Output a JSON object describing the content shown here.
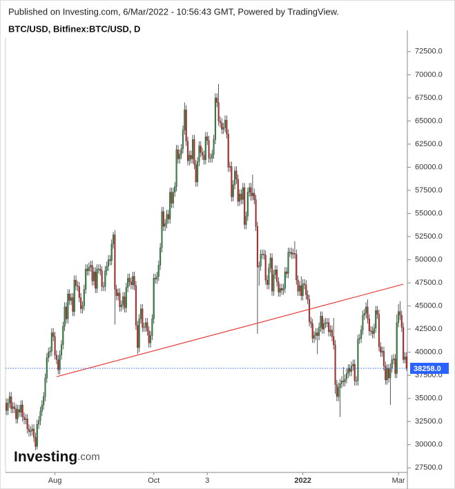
{
  "header": "Published on Investing.com, 6/Mar/2022 - 10:56:43 GMT, Powered by TradingView.",
  "logo": {
    "brand": "Investing",
    "suffix": ".com"
  },
  "chart_data": {
    "type": "candlestick",
    "title": "BTC/USD, Bitfinex:BTC/USD, D",
    "categories": [
      null,
      null,
      null,
      null,
      null,
      null,
      null,
      null,
      null,
      null,
      null,
      null,
      null,
      null,
      null,
      null,
      null,
      null,
      null,
      null,
      null,
      null,
      null,
      null,
      null,
      null,
      null,
      null,
      null,
      null,
      "Aug",
      null,
      null,
      null,
      null,
      null,
      null,
      null,
      null,
      null,
      null,
      null,
      null,
      null,
      null,
      null,
      null,
      null,
      null,
      null,
      null,
      null,
      null,
      null,
      null,
      null,
      null,
      null,
      null,
      null,
      null,
      null,
      null,
      null,
      null,
      null,
      null,
      null,
      null,
      null,
      null,
      null,
      null,
      null,
      null,
      null,
      null,
      null,
      null,
      null,
      null,
      null,
      null,
      null,
      null,
      null,
      null,
      null,
      null,
      null,
      null,
      "Oct",
      null,
      null,
      null,
      null,
      null,
      null,
      null,
      null,
      null,
      null,
      null,
      null,
      null,
      null,
      null,
      null,
      null,
      null,
      null,
      null,
      null,
      null,
      null,
      null,
      null,
      null,
      null,
      null,
      null,
      null,
      null,
      null,
      "3",
      null,
      null,
      null,
      null,
      null,
      null,
      null,
      null,
      null,
      null,
      null,
      null,
      null,
      null,
      null,
      null,
      null,
      null,
      null,
      null,
      null,
      null,
      null,
      null,
      null,
      null,
      null,
      null,
      null,
      null,
      null,
      null,
      null,
      null,
      null,
      null,
      null,
      null,
      null,
      null,
      null,
      null,
      null,
      null,
      null,
      null,
      null,
      null,
      null,
      null,
      null,
      null,
      null,
      null,
      null,
      null,
      null,
      null,
      "2022",
      null,
      null,
      null,
      null,
      null,
      null,
      null,
      null,
      null,
      null,
      null,
      null,
      null,
      null,
      null,
      null,
      null,
      null,
      null,
      null,
      null,
      null,
      null,
      null,
      null,
      null,
      null,
      null,
      null,
      null,
      null,
      null,
      null,
      null,
      null,
      null,
      null,
      null,
      null,
      null,
      null,
      null,
      null,
      null,
      null,
      null,
      null,
      null,
      null,
      null,
      null,
      null,
      null,
      null,
      null,
      null,
      null,
      null,
      "Mar",
      null,
      null,
      null,
      null,
      null
    ],
    "open": [
      34500,
      33700,
      34500,
      35200,
      33900,
      34100,
      33900,
      32800,
      33800,
      33500,
      34300,
      33000,
      32700,
      32800,
      31700,
      31400,
      31500,
      31700,
      30800,
      29800,
      32200,
      32600,
      33600,
      34300,
      35200,
      37200,
      39400,
      40000,
      40100,
      42100,
      41700,
      39700,
      39200,
      38100,
      39700,
      40800,
      42800,
      44900,
      43600,
      46300,
      45600,
      45900,
      44400,
      47800,
      47200,
      47100,
      45900,
      44700,
      45000,
      46800,
      49000,
      48800,
      49200,
      49400,
      47700,
      48700,
      46900,
      49000,
      49000,
      48800,
      47100,
      47100,
      48800,
      49300,
      50000,
      49900,
      51700,
      52700,
      46800,
      46100,
      46400,
      44900,
      45100,
      46000,
      44800,
      47000,
      48000,
      47600,
      47300,
      48200,
      47200,
      42900,
      40500,
      43600,
      44700,
      42700,
      42700,
      43200,
      42300,
      41000,
      41800,
      43600,
      48000,
      47900,
      48200,
      49400,
      51300,
      55200,
      53600,
      53900,
      54900,
      54400,
      57300,
      56100,
      57300,
      57900,
      61900,
      60900,
      61400,
      62000,
      64000,
      66200,
      62800,
      60700,
      61300,
      60900,
      63000,
      60300,
      58400,
      60600,
      62300,
      61600,
      61300,
      60800,
      63300,
      62900,
      61000,
      61000,
      61400,
      63000,
      67500,
      67000,
      65000,
      64800,
      64100,
      64300,
      65100,
      63600,
      60000,
      60100,
      56800,
      58100,
      59600,
      58700,
      56300,
      57100,
      56500,
      57800,
      53800,
      54700,
      57300,
      57800,
      56900,
      57200,
      56500,
      53600,
      49200,
      49300,
      50600,
      50600,
      50500,
      47800,
      47300,
      49100,
      50200,
      46600,
      48400,
      48900,
      47600,
      46500,
      46900,
      46700,
      46900,
      48700,
      48500,
      50800,
      50800,
      50600,
      50700,
      50600,
      47800,
      46600,
      47200,
      46100,
      47400,
      47300,
      46200,
      45700,
      43300,
      43100,
      41500,
      41800,
      42100,
      41800,
      42700,
      43900,
      42500,
      43100,
      43200,
      43200,
      42200,
      42400,
      41700,
      40800,
      36500,
      35200,
      36200,
      36600,
      36900,
      36800,
      37100,
      37700,
      38200,
      37900,
      38500,
      38700,
      36900,
      36900,
      41400,
      41500,
      42400,
      44000,
      44200,
      44900,
      43600,
      42300,
      42300,
      42000,
      42600,
      44500,
      44100,
      40600,
      40000,
      40100,
      38500,
      37000,
      38200,
      37200,
      38300,
      39200,
      39300,
      37700,
      43200,
      44400,
      44000,
      42700,
      39200,
      39500
    ],
    "high": [
      35000,
      35000,
      35700,
      35700,
      34600,
      34600,
      34400,
      34300,
      34300,
      34800,
      34800,
      33500,
      33300,
      33300,
      32200,
      32000,
      32200,
      32200,
      31300,
      32700,
      33100,
      34100,
      34800,
      35700,
      37700,
      39900,
      40500,
      40600,
      42600,
      42600,
      42200,
      40200,
      39700,
      40200,
      41300,
      43300,
      45400,
      45400,
      46800,
      46800,
      46400,
      46400,
      48300,
      48300,
      47700,
      47600,
      46400,
      45500,
      47300,
      49500,
      49500,
      49700,
      49900,
      49900,
      49200,
      49200,
      49500,
      49500,
      49500,
      49300,
      47600,
      49300,
      49800,
      50500,
      50500,
      52200,
      53000,
      53200,
      47300,
      46900,
      46900,
      45600,
      46500,
      46500,
      47500,
      48500,
      48500,
      48100,
      48700,
      48700,
      47700,
      43400,
      44100,
      45200,
      45200,
      43200,
      43700,
      43700,
      42800,
      42300,
      44100,
      48500,
      48500,
      48700,
      49900,
      51800,
      55700,
      55700,
      54400,
      55400,
      55400,
      57800,
      57800,
      57800,
      58400,
      62400,
      62400,
      61900,
      62500,
      64500,
      67000,
      66700,
      63300,
      61800,
      61800,
      63500,
      63500,
      60800,
      61100,
      62800,
      62800,
      62100,
      61800,
      63800,
      63800,
      63400,
      61500,
      61900,
      63500,
      68000,
      68000,
      69000,
      65500,
      65300,
      64800,
      65600,
      65600,
      64100,
      60600,
      60600,
      58600,
      60100,
      60100,
      59200,
      57600,
      57600,
      58300,
      58300,
      55200,
      57800,
      58300,
      58300,
      59200,
      57700,
      57000,
      54100,
      49800,
      51100,
      51100,
      51100,
      51000,
      48300,
      49600,
      50700,
      50700,
      48900,
      49400,
      49400,
      48100,
      47400,
      47400,
      47400,
      49200,
      49200,
      51300,
      51300,
      51300,
      51200,
      52000,
      51100,
      48300,
      47700,
      48200,
      47900,
      47900,
      47800,
      46700,
      46200,
      43800,
      43600,
      42300,
      42600,
      42600,
      43200,
      44400,
      44400,
      43600,
      43700,
      43700,
      43700,
      42900,
      42900,
      43700,
      41300,
      37000,
      36700,
      37100,
      37400,
      38400,
      37600,
      38200,
      38700,
      38700,
      39000,
      39200,
      39200,
      37400,
      41900,
      42000,
      42900,
      44500,
      44700,
      45400,
      45700,
      44100,
      42800,
      42800,
      43100,
      45000,
      45000,
      44600,
      41100,
      40600,
      40600,
      39000,
      38700,
      38700,
      38800,
      39700,
      39800,
      39800,
      44100,
      45200,
      45500,
      44500,
      43200,
      40000,
      40000
    ],
    "low": [
      33200,
      33200,
      34000,
      33400,
      33400,
      33400,
      32300,
      32300,
      33000,
      33000,
      32500,
      32200,
      32200,
      31200,
      30900,
      30900,
      31000,
      30300,
      29400,
      29500,
      31700,
      32100,
      33100,
      33800,
      34700,
      36700,
      38900,
      39500,
      39600,
      41200,
      39200,
      38700,
      37600,
      37600,
      39200,
      40300,
      42300,
      43100,
      43100,
      45100,
      45100,
      43900,
      43900,
      46700,
      46600,
      45400,
      44200,
      44200,
      44500,
      46300,
      48300,
      48300,
      48700,
      47200,
      47200,
      46400,
      46400,
      48500,
      48300,
      46600,
      46600,
      46600,
      48300,
      48800,
      49400,
      49400,
      51200,
      43000,
      45600,
      45600,
      44400,
      44400,
      44600,
      44300,
      44300,
      46500,
      47100,
      46800,
      46800,
      46700,
      42400,
      39800,
      40000,
      43100,
      42200,
      42200,
      42200,
      41800,
      40500,
      40500,
      41300,
      43100,
      47400,
      47400,
      47700,
      48900,
      50800,
      53100,
      53100,
      53400,
      53900,
      53900,
      55600,
      55600,
      56800,
      57400,
      60400,
      60400,
      60900,
      61500,
      63500,
      62300,
      60200,
      60200,
      60400,
      60400,
      59800,
      57900,
      57900,
      60100,
      61100,
      60800,
      60300,
      60300,
      62400,
      60500,
      60500,
      60500,
      60900,
      62500,
      66500,
      64500,
      64300,
      63600,
      63600,
      63800,
      63100,
      59500,
      59500,
      56300,
      56300,
      57600,
      58200,
      55800,
      55800,
      56000,
      56000,
      53300,
      53300,
      54200,
      56800,
      56400,
      56400,
      56000,
      53100,
      42000,
      47200,
      48800,
      50100,
      50000,
      47300,
      46800,
      46800,
      48600,
      46100,
      46100,
      47900,
      47100,
      46000,
      46000,
      46200,
      46200,
      46400,
      48000,
      48000,
      50300,
      50100,
      50100,
      50100,
      47300,
      46100,
      46100,
      45600,
      45600,
      46800,
      45700,
      45200,
      42800,
      42600,
      41000,
      41000,
      41300,
      39800,
      41300,
      42200,
      42000,
      42000,
      42600,
      42700,
      41700,
      41700,
      41200,
      40300,
      35500,
      34700,
      34700,
      33000,
      36100,
      36300,
      36300,
      36600,
      37200,
      37400,
      37400,
      38000,
      36400,
      36400,
      36400,
      40900,
      41000,
      41900,
      43500,
      43700,
      43100,
      41800,
      41800,
      41500,
      41500,
      42100,
      43600,
      40100,
      39500,
      39500,
      38000,
      36500,
      36500,
      36700,
      34300,
      37800,
      38700,
      37200,
      37200,
      42700,
      43500,
      42200,
      38800,
      38800,
      38000
    ],
    "close": [
      33700,
      34500,
      35200,
      33900,
      34100,
      33900,
      32800,
      33800,
      33500,
      34300,
      33000,
      32700,
      32800,
      31700,
      31400,
      31500,
      31700,
      30800,
      29800,
      32200,
      32600,
      33600,
      34300,
      35200,
      37200,
      39400,
      40000,
      40100,
      42100,
      41700,
      39700,
      39200,
      38100,
      39700,
      40800,
      42800,
      44900,
      43600,
      46300,
      45600,
      45900,
      44400,
      47800,
      47200,
      47100,
      45900,
      44700,
      45000,
      46800,
      49000,
      48800,
      49200,
      49400,
      47700,
      48700,
      46900,
      49000,
      49000,
      48800,
      47100,
      47100,
      48800,
      49300,
      50000,
      49900,
      51700,
      52700,
      46800,
      46100,
      46400,
      44900,
      45100,
      46000,
      44800,
      47000,
      48000,
      47600,
      47300,
      48200,
      47200,
      42900,
      40500,
      43600,
      44700,
      42700,
      42700,
      43200,
      42300,
      41000,
      41800,
      43600,
      48000,
      47900,
      48200,
      49400,
      51300,
      55200,
      53600,
      53900,
      54900,
      54400,
      57300,
      56100,
      57300,
      57900,
      61900,
      60900,
      61400,
      62000,
      64000,
      66200,
      62800,
      60700,
      61300,
      60900,
      63000,
      60300,
      58400,
      60600,
      62300,
      61600,
      61300,
      60800,
      63300,
      62900,
      61000,
      61000,
      61400,
      63000,
      67500,
      67000,
      65000,
      64800,
      64100,
      64300,
      65100,
      63600,
      60000,
      60100,
      56800,
      58100,
      59600,
      58700,
      56300,
      57100,
      56500,
      57800,
      53800,
      54700,
      57300,
      57800,
      56900,
      57200,
      56500,
      53600,
      49200,
      49300,
      50600,
      50600,
      50500,
      47800,
      47300,
      49100,
      50200,
      46600,
      48400,
      48900,
      47600,
      46500,
      46900,
      46700,
      46900,
      48700,
      48500,
      50800,
      50800,
      50600,
      50700,
      50600,
      47800,
      46600,
      47200,
      46100,
      47400,
      47300,
      46200,
      45700,
      43300,
      43100,
      41500,
      41800,
      42100,
      41800,
      42700,
      43900,
      42500,
      43100,
      43200,
      43200,
      42200,
      42400,
      41700,
      40800,
      36500,
      35200,
      36200,
      36600,
      36900,
      36800,
      37100,
      37700,
      38200,
      37900,
      38500,
      38700,
      36900,
      36900,
      41400,
      41500,
      42400,
      44000,
      44200,
      44900,
      43600,
      42300,
      42300,
      42000,
      42600,
      44500,
      44100,
      40600,
      40000,
      40100,
      38500,
      37000,
      38200,
      37200,
      38300,
      39200,
      39300,
      37700,
      43200,
      44400,
      44000,
      42700,
      39200,
      39500,
      38258
    ],
    "last_close_label": "38258.0",
    "up_color": "#2e8b3e",
    "down_color": "#c62828",
    "wick_color": "#2a2a2a",
    "last_price_color": "#2962ff",
    "trendline": {
      "color": "#e53935",
      "points": [
        [
          31,
          37350
        ],
        [
          245,
          47350
        ]
      ]
    },
    "ylim": [
      27000,
      74800
    ],
    "yticks": [
      {
        "value": 27500,
        "label": "27500.0"
      },
      {
        "value": 30000,
        "label": "30000.0"
      },
      {
        "value": 32500,
        "label": "32500.0"
      },
      {
        "value": 35000,
        "label": "35000.0"
      },
      {
        "value": 37500,
        "label": "37500.0"
      },
      {
        "value": 40000,
        "label": "40000.0"
      },
      {
        "value": 42500,
        "label": "42500.0"
      },
      {
        "value": 45000,
        "label": "45000.0"
      },
      {
        "value": 47500,
        "label": "47500.0"
      },
      {
        "value": 50000,
        "label": "50000.0"
      },
      {
        "value": 52500,
        "label": "52500.0"
      },
      {
        "value": 55000,
        "label": "55000.0"
      },
      {
        "value": 57500,
        "label": "57500.0"
      },
      {
        "value": 60000,
        "label": "60000.0"
      },
      {
        "value": 62500,
        "label": "62500.0"
      },
      {
        "value": 65000,
        "label": "65000.0"
      },
      {
        "value": 67500,
        "label": "67500.0"
      },
      {
        "value": 70000,
        "label": "70000.0"
      },
      {
        "value": 72500,
        "label": "72500.0"
      }
    ],
    "grid": false
  }
}
